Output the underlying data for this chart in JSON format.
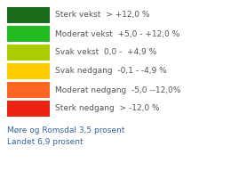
{
  "legend_items": [
    {
      "color": "#1a6b1a",
      "label": "Sterk vekst  > +12,0 %"
    },
    {
      "color": "#22bb22",
      "label": "Moderat vekst  +5,0 - +12,0 %"
    },
    {
      "color": "#aacc00",
      "label": "Svak vekst  0,0 -  +4,9 %"
    },
    {
      "color": "#ffcc00",
      "label": "Svak nedgang  -0,1 - -4,9 %"
    },
    {
      "color": "#ff6622",
      "label": "Moderat nedgang  -5,0 --12,0%"
    },
    {
      "color": "#ee2211",
      "label": "Sterk nedgang  > -12,0 %"
    }
  ],
  "footer_lines": [
    "Møre og Romsdal 3,5 prosent",
    "Landet 6,9 prosent"
  ],
  "background_color": "#ffffff",
  "text_color": "#555555",
  "footer_color": "#336699",
  "font_size": 6.5,
  "footer_font_size": 6.5
}
